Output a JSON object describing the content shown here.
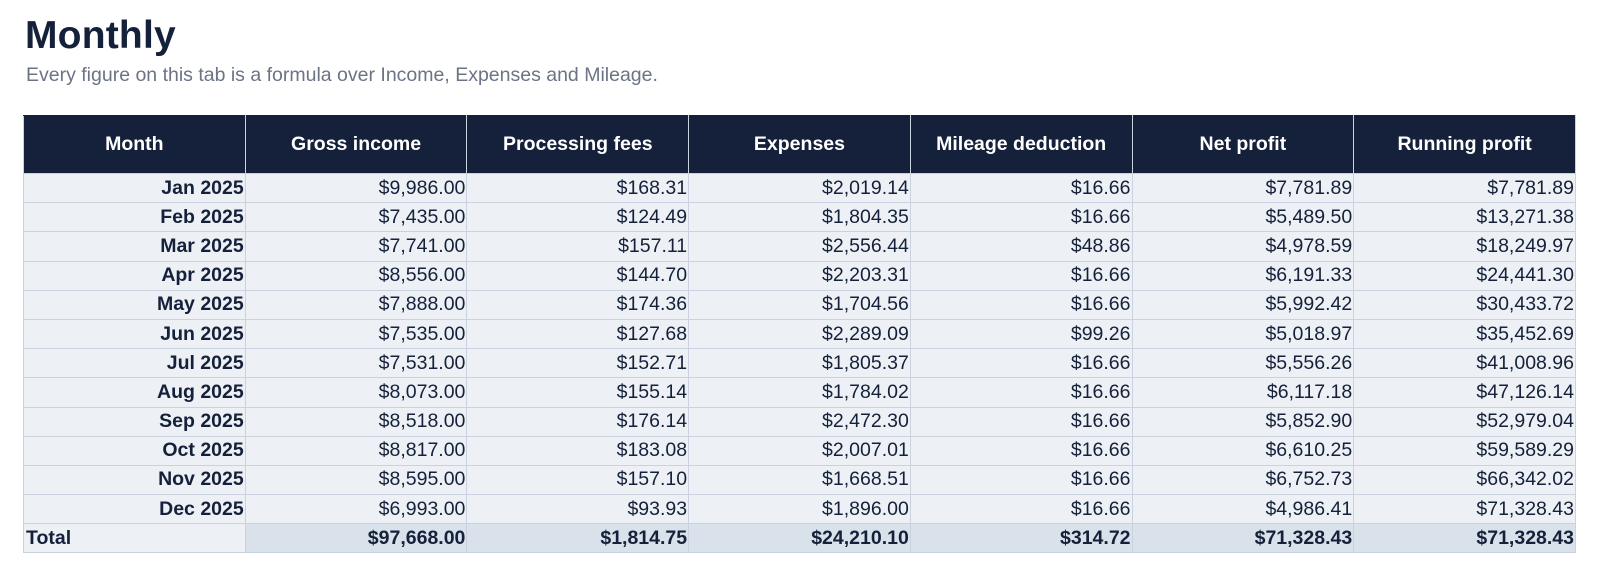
{
  "page": {
    "title": "Monthly",
    "subtitle": "Every figure on this tab is a formula over Income, Expenses and Mileage."
  },
  "table": {
    "headers": [
      "Month",
      "Gross income",
      "Processing fees",
      "Expenses",
      "Mileage deduction",
      "Net profit",
      "Running profit"
    ],
    "rows": [
      [
        "Jan 2025",
        "$9,986.00",
        "$168.31",
        "$2,019.14",
        "$16.66",
        "$7,781.89",
        "$7,781.89"
      ],
      [
        "Feb 2025",
        "$7,435.00",
        "$124.49",
        "$1,804.35",
        "$16.66",
        "$5,489.50",
        "$13,271.38"
      ],
      [
        "Mar 2025",
        "$7,741.00",
        "$157.11",
        "$2,556.44",
        "$48.86",
        "$4,978.59",
        "$18,249.97"
      ],
      [
        "Apr 2025",
        "$8,556.00",
        "$144.70",
        "$2,203.31",
        "$16.66",
        "$6,191.33",
        "$24,441.30"
      ],
      [
        "May 2025",
        "$7,888.00",
        "$174.36",
        "$1,704.56",
        "$16.66",
        "$5,992.42",
        "$30,433.72"
      ],
      [
        "Jun 2025",
        "$7,535.00",
        "$127.68",
        "$2,289.09",
        "$99.26",
        "$5,018.97",
        "$35,452.69"
      ],
      [
        "Jul 2025",
        "$7,531.00",
        "$152.71",
        "$1,805.37",
        "$16.66",
        "$5,556.26",
        "$41,008.96"
      ],
      [
        "Aug 2025",
        "$8,073.00",
        "$155.14",
        "$1,784.02",
        "$16.66",
        "$6,117.18",
        "$47,126.14"
      ],
      [
        "Sep 2025",
        "$8,518.00",
        "$176.14",
        "$2,472.30",
        "$16.66",
        "$5,852.90",
        "$52,979.04"
      ],
      [
        "Oct 2025",
        "$8,817.00",
        "$183.08",
        "$2,007.01",
        "$16.66",
        "$6,610.25",
        "$59,589.29"
      ],
      [
        "Nov 2025",
        "$8,595.00",
        "$157.10",
        "$1,668.51",
        "$16.66",
        "$6,752.73",
        "$66,342.02"
      ],
      [
        "Dec 2025",
        "$6,993.00",
        "$93.93",
        "$1,896.00",
        "$16.66",
        "$4,986.41",
        "$71,328.43"
      ]
    ],
    "total": [
      "Total",
      "$97,668.00",
      "$1,814.75",
      "$24,210.10",
      "$314.72",
      "$71,328.43",
      "$71,328.43"
    ]
  },
  "colors": {
    "header_bg": "#15213a",
    "cell_bg": "#edf1f5",
    "total_bg": "#d9e1ea",
    "grid_line": "#c9d2de"
  }
}
